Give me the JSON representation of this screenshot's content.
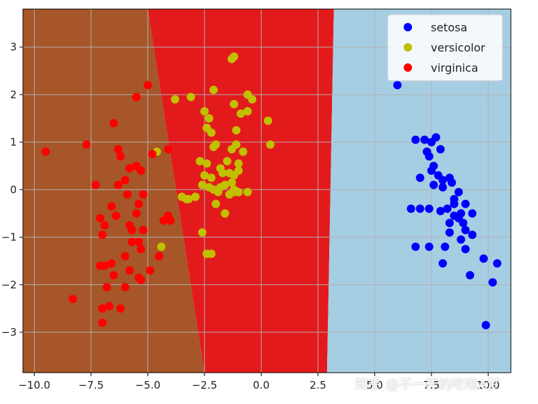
{
  "chart_data": {
    "type": "scatter",
    "title": "",
    "xlabel": "",
    "ylabel": "",
    "xlim": [
      -10.5,
      11.0
    ],
    "ylim": [
      -3.85,
      3.8
    ],
    "grid": true,
    "legend_position": "top-right",
    "x_ticks": [
      -10.0,
      -7.5,
      -5.0,
      -2.5,
      0.0,
      2.5,
      5.0,
      7.5,
      10.0
    ],
    "x_tick_labels": [
      "−10.0",
      "−7.5",
      "−5.0",
      "−2.5",
      "0.0",
      "2.5",
      "5.0",
      "7.5",
      "10.0"
    ],
    "y_ticks": [
      3,
      2,
      1,
      0,
      -1,
      -2,
      -3
    ],
    "y_tick_labels": [
      "3",
      "2",
      "1",
      "0",
      "−1",
      "−2",
      "−3"
    ],
    "decision_regions": [
      {
        "class": "virginica",
        "color": "#a65628",
        "polygon": [
          [
            -10.5,
            3.8
          ],
          [
            -5.0,
            3.8
          ],
          [
            -2.5,
            -3.85
          ],
          [
            -10.5,
            -3.85
          ]
        ]
      },
      {
        "class": "versicolor",
        "color": "#e31a1c",
        "polygon": [
          [
            -5.0,
            3.8
          ],
          [
            3.2,
            3.8
          ],
          [
            2.9,
            -3.85
          ],
          [
            -2.5,
            -3.85
          ]
        ]
      },
      {
        "class": "setosa",
        "color": "#a6cee3",
        "polygon": [
          [
            3.2,
            3.8
          ],
          [
            11.0,
            3.8
          ],
          [
            11.0,
            -3.85
          ],
          [
            2.9,
            -3.85
          ]
        ]
      }
    ],
    "series": [
      {
        "name": "setosa",
        "color": "#0000ff",
        "x": [
          6.0,
          6.8,
          7.2,
          7.5,
          7.7,
          7.3,
          7.4,
          7.9,
          7.6,
          7.5,
          7.8,
          8.0,
          7.6,
          8.3,
          8.0,
          8.4,
          8.7,
          8.5,
          9.0,
          8.5,
          8.8,
          9.3,
          8.2,
          8.7,
          8.3,
          8.9,
          7.0,
          7.4,
          7.9,
          8.5,
          9.0,
          8.3,
          9.3,
          6.8,
          7.4,
          8.1,
          8.8,
          9.0,
          8.0,
          9.8,
          10.4,
          9.2,
          10.2,
          6.6,
          7.0,
          9.9
        ],
        "y": [
          2.2,
          1.05,
          1.05,
          1.0,
          1.1,
          0.8,
          0.7,
          0.85,
          0.5,
          0.4,
          0.3,
          0.2,
          0.1,
          0.25,
          0.05,
          0.15,
          -0.05,
          -0.3,
          -0.3,
          -0.2,
          -0.5,
          -0.5,
          -0.4,
          -0.6,
          -0.7,
          -0.7,
          0.25,
          -0.4,
          -0.45,
          -0.55,
          -0.85,
          -0.9,
          -0.95,
          -1.2,
          -1.2,
          -1.2,
          -1.05,
          -1.25,
          -1.55,
          -1.45,
          -1.55,
          -1.8,
          -1.95,
          -0.4,
          -0.4,
          -2.85
        ]
      },
      {
        "name": "versicolor",
        "color": "#c0c000",
        "x": [
          -1.3,
          -1.2,
          -2.1,
          -0.6,
          -0.4,
          -0.9,
          -3.8,
          -3.1,
          -1.2,
          -0.6,
          -2.5,
          -2.3,
          -2.4,
          -2.2,
          -1.1,
          0.3,
          -2.1,
          -1.3,
          -0.8,
          -2.0,
          -1.5,
          -1.0,
          -2.4,
          -2.7,
          -1.8,
          -1.7,
          -1.4,
          -1.2,
          -1.0,
          -2.5,
          -2.2,
          -4.6,
          -2.6,
          -1.3,
          -1.8,
          -2.3,
          -2.1,
          -1.9,
          -1.6,
          -1.2,
          -0.6,
          -2.9,
          -3.2,
          -3.3,
          -3.5,
          -1.1,
          -1.4,
          -1.2,
          -1.0,
          -2.6,
          -2.0,
          -1.6,
          -4.4,
          -2.4,
          -2.2,
          0.4
        ],
        "y": [
          2.75,
          2.8,
          2.1,
          2.0,
          1.9,
          1.6,
          1.9,
          1.95,
          1.8,
          1.65,
          1.65,
          1.5,
          1.3,
          1.2,
          1.25,
          1.45,
          0.9,
          0.85,
          0.8,
          0.95,
          0.6,
          0.55,
          0.55,
          0.6,
          0.45,
          0.35,
          0.35,
          0.3,
          0.4,
          0.3,
          0.25,
          0.8,
          0.1,
          0.15,
          0.05,
          0.05,
          0.0,
          -0.05,
          0.1,
          -0.05,
          -0.05,
          -0.15,
          -0.2,
          -0.2,
          -0.15,
          0.95,
          -0.1,
          0.0,
          -0.05,
          -0.9,
          -0.3,
          -0.5,
          -1.2,
          -1.35,
          -1.35,
          0.95
        ],
        "x_extra": [],
        "y_extra": []
      },
      {
        "name": "virginica",
        "color": "#ff0000",
        "x": [
          -5.0,
          -5.5,
          -6.5,
          -7.7,
          -9.5,
          -6.3,
          -6.2,
          -4.8,
          -6.0,
          -5.5,
          -5.8,
          -5.3,
          -7.3,
          -6.3,
          -5.2,
          -5.9,
          -6.6,
          -5.4,
          -4.1,
          -4.3,
          -5.5,
          -7.1,
          -6.9,
          -5.8,
          -5.7,
          -6.4,
          -5.2,
          -5.7,
          -7.0,
          -5.4,
          -4.5,
          -6.0,
          -5.3,
          -6.6,
          -7.1,
          -6.9,
          -5.8,
          -4.9,
          -5.4,
          -6.5,
          -6.8,
          -6.0,
          -5.3,
          -8.3,
          -7.0,
          -6.7,
          -6.2,
          -7.0,
          -4.1,
          -4.0
        ],
        "y": [
          2.2,
          1.95,
          1.4,
          0.95,
          0.8,
          0.85,
          0.7,
          0.75,
          0.2,
          0.5,
          0.45,
          0.4,
          0.1,
          0.1,
          -0.1,
          -0.1,
          -0.35,
          -0.3,
          -0.55,
          -0.65,
          -0.5,
          -0.6,
          -0.75,
          -0.75,
          -0.85,
          -0.55,
          -0.85,
          -1.1,
          -0.95,
          -1.1,
          -1.4,
          -1.4,
          -1.25,
          -1.55,
          -1.6,
          -1.6,
          -1.7,
          -1.7,
          -1.85,
          -1.8,
          -2.05,
          -2.05,
          -1.9,
          -2.3,
          -2.5,
          -2.45,
          -2.5,
          -2.8,
          0.85,
          -0.65
        ]
      }
    ],
    "legend": [
      {
        "label": "setosa",
        "color": "#0000ff"
      },
      {
        "label": "versicolor",
        "color": "#c0c000"
      },
      {
        "label": "virginica",
        "color": "#ff0000"
      }
    ]
  },
  "watermark_text": "知乎 @不一样的吃啦A梦"
}
